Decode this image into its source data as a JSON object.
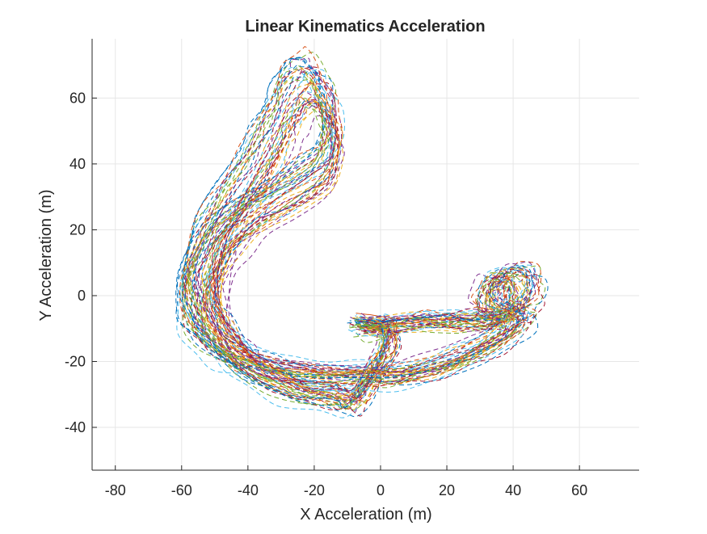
{
  "chart_data": {
    "type": "line",
    "title": "Linear Kinematics Acceleration",
    "xlabel": "X Acceleration (m)",
    "ylabel": "Y Acceleration (m)",
    "xlim": [
      -87,
      78
    ],
    "ylim": [
      -53,
      78
    ],
    "grid": true,
    "line_style": "dashed",
    "xticks": [
      -80,
      -60,
      -40,
      -20,
      0,
      20,
      40,
      60
    ],
    "yticks": [
      -40,
      -20,
      0,
      20,
      40,
      60
    ],
    "xtick_labels": [
      "-80",
      "-60",
      "-40",
      "-20",
      "0",
      "20",
      "40",
      "60"
    ],
    "ytick_labels": [
      "-40",
      "-20",
      "0",
      "20",
      "40",
      "60"
    ],
    "series_count": 40,
    "series_colors": [
      "#0072BD",
      "#D95319",
      "#EDB120",
      "#7E2F8E",
      "#77AC30",
      "#4DBEEE",
      "#A2142F"
    ],
    "path_template": {
      "x": [
        -6,
        -2,
        5,
        12,
        18,
        24,
        28,
        32,
        36,
        38,
        40,
        42,
        42,
        41,
        38,
        35,
        33,
        32,
        34,
        38,
        40,
        38,
        32,
        24,
        15,
        5,
        -5,
        -15,
        -25,
        -34,
        -42,
        -48,
        -52,
        -53,
        -52,
        -49,
        -45,
        -38,
        -30,
        -22,
        -16,
        -14,
        -14,
        -16,
        -18,
        -20,
        -22,
        -24,
        -26,
        -28,
        -30,
        -33,
        -37,
        -42,
        -47,
        -50,
        -52,
        -51,
        -48,
        -44,
        -40,
        -34,
        -28,
        -22,
        -16,
        -11,
        -8,
        -5,
        -1,
        2,
        3,
        2,
        -2,
        -6
      ],
      "y": [
        -9,
        -10,
        -9,
        -8,
        -8,
        -8,
        -8,
        -8,
        -7,
        -6,
        -4,
        -1,
        2,
        5,
        6,
        5,
        2,
        -2,
        -5,
        -6,
        -8,
        -11,
        -15,
        -19,
        -22,
        -24,
        -24,
        -24,
        -23,
        -21,
        -18,
        -14,
        -9,
        -3,
        4,
        11,
        17,
        23,
        28,
        33,
        38,
        45,
        52,
        57,
        60,
        62,
        62,
        61,
        58,
        54,
        49,
        43,
        36,
        28,
        20,
        12,
        4,
        -3,
        -9,
        -15,
        -20,
        -24,
        -27,
        -29,
        -30,
        -31,
        -32,
        -28,
        -22,
        -17,
        -13,
        -10,
        -9,
        -9
      ]
    }
  }
}
